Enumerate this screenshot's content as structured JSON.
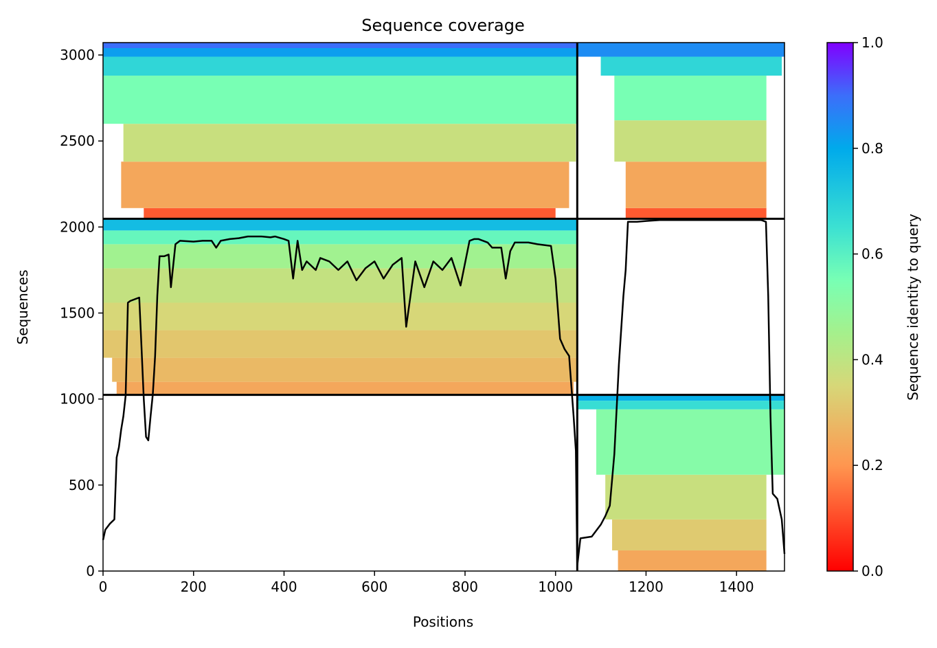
{
  "chart_data": {
    "type": "heatmap",
    "title": "Sequence coverage",
    "xlabel": "Positions",
    "ylabel": "Sequences",
    "xlim": [
      0,
      1506
    ],
    "ylim": [
      0,
      3072
    ],
    "xticks": [
      0,
      200,
      400,
      600,
      800,
      1000,
      1200,
      1400
    ],
    "yticks": [
      0,
      500,
      1000,
      1500,
      2000,
      2500,
      3000
    ],
    "grid": false,
    "colormap": "rainbow",
    "colorbar": {
      "label": "Sequence identity to query",
      "range": [
        0,
        1
      ],
      "ticks": [
        0.0,
        0.2,
        0.4,
        0.6,
        0.8,
        1.0
      ],
      "tick_labels": [
        "0.0",
        "0.2",
        "0.4",
        "0.6",
        "0.8",
        "1.0"
      ]
    },
    "chain_boundaries": {
      "x": [
        1048
      ],
      "y": [
        1024,
        2048
      ]
    },
    "coverage_blocks": [
      {
        "x_range": [
          0,
          1048
        ],
        "y_range": [
          2048,
          3072
        ],
        "bands": [
          {
            "y": [
              2048,
              2110
            ],
            "identity": 0.12,
            "x": [
              90,
              1000
            ]
          },
          {
            "y": [
              2110,
              2380
            ],
            "identity": 0.24,
            "x": [
              40,
              1030
            ]
          },
          {
            "y": [
              2380,
              2600
            ],
            "identity": 0.38,
            "x": [
              45,
              1045
            ]
          },
          {
            "y": [
              2600,
              2880
            ],
            "identity": 0.55,
            "x": [
              0,
              1048
            ]
          },
          {
            "y": [
              2880,
              2990
            ],
            "identity": 0.68,
            "x": [
              0,
              1048
            ]
          },
          {
            "y": [
              2990,
              3040
            ],
            "identity": 0.82,
            "x": [
              0,
              1048
            ]
          },
          {
            "y": [
              3040,
              3072
            ],
            "identity": 0.9,
            "x": [
              0,
              1048
            ]
          }
        ]
      },
      {
        "x_range": [
          1048,
          1506
        ],
        "y_range": [
          2048,
          3072
        ],
        "bands": [
          {
            "y": [
              2048,
              2110
            ],
            "identity": 0.12,
            "x": [
              1155,
              1466
            ]
          },
          {
            "y": [
              2110,
              2380
            ],
            "identity": 0.24,
            "x": [
              1155,
              1466
            ]
          },
          {
            "y": [
              2380,
              2620
            ],
            "identity": 0.38,
            "x": [
              1130,
              1466
            ]
          },
          {
            "y": [
              2620,
              2880
            ],
            "identity": 0.55,
            "x": [
              1130,
              1466
            ]
          },
          {
            "y": [
              2880,
              2990
            ],
            "identity": 0.68,
            "x": [
              1100,
              1500
            ]
          },
          {
            "y": [
              2990,
              3072
            ],
            "identity": 0.85,
            "x": [
              1048,
              1506
            ]
          }
        ]
      },
      {
        "x_range": [
          0,
          1048
        ],
        "y_range": [
          1024,
          2048
        ],
        "bands": [
          {
            "y": [
              1024,
              1100
            ],
            "identity": 0.24,
            "x": [
              30,
              1040
            ]
          },
          {
            "y": [
              1100,
              1240
            ],
            "identity": 0.28,
            "x": [
              20,
              1048
            ]
          },
          {
            "y": [
              1240,
              1400
            ],
            "identity": 0.31,
            "x": [
              0,
              1048
            ]
          },
          {
            "y": [
              1400,
              1560
            ],
            "identity": 0.35,
            "x": [
              0,
              1048
            ]
          },
          {
            "y": [
              1560,
              1760
            ],
            "identity": 0.39,
            "x": [
              0,
              1048
            ]
          },
          {
            "y": [
              1760,
              1900
            ],
            "identity": 0.46,
            "x": [
              0,
              1048
            ]
          },
          {
            "y": [
              1900,
              1980
            ],
            "identity": 0.58,
            "x": [
              0,
              1048
            ]
          },
          {
            "y": [
              1980,
              2048
            ],
            "identity": 0.75,
            "x": [
              0,
              1048
            ]
          }
        ]
      },
      {
        "x_range": [
          1048,
          1506
        ],
        "y_range": [
          0,
          1024
        ],
        "bands": [
          {
            "y": [
              0,
              120
            ],
            "identity": 0.24,
            "x": [
              1138,
              1466
            ]
          },
          {
            "y": [
              120,
              300
            ],
            "identity": 0.32,
            "x": [
              1125,
              1466
            ]
          },
          {
            "y": [
              300,
              560
            ],
            "identity": 0.38,
            "x": [
              1110,
              1466
            ]
          },
          {
            "y": [
              560,
              940
            ],
            "identity": 0.52,
            "x": [
              1090,
              1506
            ]
          },
          {
            "y": [
              940,
              990
            ],
            "identity": 0.66,
            "x": [
              1048,
              1506
            ]
          },
          {
            "y": [
              990,
              1024
            ],
            "identity": 0.78,
            "x": [
              1048,
              1506
            ]
          }
        ]
      }
    ],
    "coverage_line": {
      "x": [
        0,
        5,
        15,
        25,
        30,
        35,
        40,
        45,
        50,
        55,
        60,
        70,
        80,
        85,
        90,
        95,
        100,
        105,
        110,
        115,
        120,
        125,
        135,
        145,
        150,
        160,
        170,
        200,
        220,
        240,
        250,
        260,
        280,
        300,
        320,
        350,
        370,
        380,
        400,
        410,
        420,
        430,
        440,
        450,
        470,
        480,
        500,
        520,
        540,
        560,
        580,
        600,
        620,
        640,
        660,
        670,
        690,
        710,
        730,
        750,
        770,
        790,
        810,
        820,
        830,
        850,
        860,
        880,
        890,
        900,
        910,
        940,
        960,
        990,
        1000,
        1010,
        1020,
        1030,
        1040,
        1045,
        1048,
        1055,
        1080,
        1100,
        1110,
        1120,
        1130,
        1140,
        1150,
        1155,
        1160,
        1180,
        1200,
        1230,
        1260,
        1280,
        1300,
        1320,
        1350,
        1380,
        1400,
        1420,
        1440,
        1455,
        1465,
        1470,
        1475,
        1480,
        1490,
        1500,
        1506
      ],
      "y": [
        180,
        240,
        275,
        300,
        660,
        720,
        820,
        900,
        1020,
        1560,
        1570,
        1580,
        1590,
        1300,
        1000,
        780,
        760,
        900,
        1030,
        1250,
        1600,
        1830,
        1830,
        1840,
        1650,
        1900,
        1920,
        1915,
        1920,
        1920,
        1880,
        1920,
        1930,
        1935,
        1945,
        1945,
        1940,
        1945,
        1930,
        1920,
        1700,
        1920,
        1750,
        1800,
        1750,
        1820,
        1800,
        1750,
        1800,
        1690,
        1760,
        1800,
        1700,
        1780,
        1820,
        1420,
        1800,
        1650,
        1800,
        1750,
        1820,
        1660,
        1920,
        1930,
        1930,
        1910,
        1880,
        1880,
        1700,
        1860,
        1910,
        1910,
        1900,
        1890,
        1700,
        1350,
        1290,
        1250,
        900,
        700,
        30,
        190,
        200,
        270,
        320,
        380,
        680,
        1200,
        1600,
        1750,
        2030,
        2030,
        2035,
        2040,
        2040,
        2040,
        2040,
        2040,
        2040,
        2040,
        2040,
        2040,
        2040,
        2040,
        2030,
        1600,
        900,
        450,
        420,
        300,
        100
      ]
    }
  }
}
